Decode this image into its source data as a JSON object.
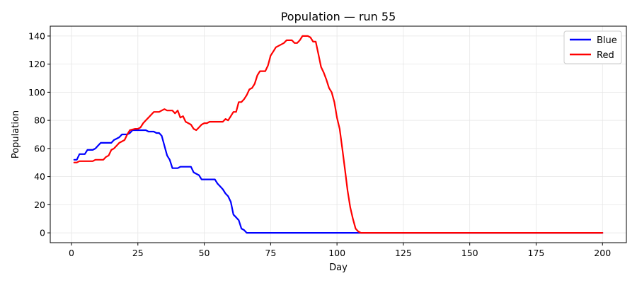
{
  "chart_data": {
    "type": "line",
    "title": "Population — run 55",
    "xlabel": "Day",
    "ylabel": "Population",
    "xlim": [
      -8,
      209
    ],
    "ylim": [
      -7,
      147
    ],
    "xticks": [
      0,
      25,
      50,
      75,
      100,
      125,
      150,
      175,
      200
    ],
    "yticks": [
      0,
      20,
      40,
      60,
      80,
      100,
      120,
      140
    ],
    "grid": true,
    "legend_position": "top-right",
    "series": [
      {
        "name": "Blue",
        "color": "#0000ff",
        "points": [
          [
            1,
            52
          ],
          [
            2,
            52
          ],
          [
            3,
            56
          ],
          [
            5,
            56
          ],
          [
            6,
            59
          ],
          [
            8,
            59
          ],
          [
            9,
            60
          ],
          [
            10,
            62
          ],
          [
            11,
            64
          ],
          [
            15,
            64
          ],
          [
            16,
            66
          ],
          [
            17,
            67
          ],
          [
            18,
            68
          ],
          [
            19,
            70
          ],
          [
            21,
            70
          ],
          [
            22,
            71
          ],
          [
            23,
            73
          ],
          [
            28,
            73
          ],
          [
            29,
            72
          ],
          [
            31,
            72
          ],
          [
            32,
            71
          ],
          [
            33,
            71
          ],
          [
            34,
            69
          ],
          [
            35,
            62
          ],
          [
            36,
            55
          ],
          [
            37,
            52
          ],
          [
            38,
            46
          ],
          [
            40,
            46
          ],
          [
            41,
            47
          ],
          [
            45,
            47
          ],
          [
            46,
            43
          ],
          [
            47,
            42
          ],
          [
            48,
            41
          ],
          [
            49,
            38
          ],
          [
            54,
            38
          ],
          [
            55,
            35
          ],
          [
            56,
            33
          ],
          [
            57,
            31
          ],
          [
            58,
            28
          ],
          [
            59,
            26
          ],
          [
            60,
            22
          ],
          [
            61,
            13
          ],
          [
            62,
            11
          ],
          [
            63,
            9
          ],
          [
            64,
            3
          ],
          [
            65,
            2
          ],
          [
            66,
            0
          ],
          [
            200,
            0
          ]
        ]
      },
      {
        "name": "Red",
        "color": "#ff0000",
        "points": [
          [
            1,
            50
          ],
          [
            2,
            50
          ],
          [
            3,
            51
          ],
          [
            8,
            51
          ],
          [
            9,
            52
          ],
          [
            12,
            52
          ],
          [
            13,
            54
          ],
          [
            14,
            55
          ],
          [
            15,
            59
          ],
          [
            16,
            60
          ],
          [
            17,
            62
          ],
          [
            18,
            64
          ],
          [
            19,
            65
          ],
          [
            20,
            66
          ],
          [
            21,
            70
          ],
          [
            22,
            73
          ],
          [
            24,
            74
          ],
          [
            25,
            74
          ],
          [
            26,
            75
          ],
          [
            27,
            78
          ],
          [
            28,
            80
          ],
          [
            29,
            82
          ],
          [
            30,
            84
          ],
          [
            31,
            86
          ],
          [
            33,
            86
          ],
          [
            34,
            87
          ],
          [
            35,
            88
          ],
          [
            36,
            87
          ],
          [
            38,
            87
          ],
          [
            39,
            85
          ],
          [
            40,
            87
          ],
          [
            41,
            82
          ],
          [
            42,
            83
          ],
          [
            43,
            79
          ],
          [
            44,
            78
          ],
          [
            45,
            77
          ],
          [
            46,
            74
          ],
          [
            47,
            73
          ],
          [
            48,
            75
          ],
          [
            49,
            77
          ],
          [
            50,
            78
          ],
          [
            51,
            78
          ],
          [
            52,
            79
          ],
          [
            56,
            79
          ],
          [
            57,
            79
          ],
          [
            58,
            81
          ],
          [
            59,
            80
          ],
          [
            60,
            83
          ],
          [
            61,
            86
          ],
          [
            62,
            86
          ],
          [
            63,
            93
          ],
          [
            64,
            93
          ],
          [
            65,
            95
          ],
          [
            66,
            98
          ],
          [
            67,
            102
          ],
          [
            68,
            103
          ],
          [
            69,
            106
          ],
          [
            70,
            112
          ],
          [
            71,
            115
          ],
          [
            73,
            115
          ],
          [
            74,
            119
          ],
          [
            75,
            126
          ],
          [
            76,
            129
          ],
          [
            77,
            132
          ],
          [
            78,
            133
          ],
          [
            79,
            134
          ],
          [
            80,
            135
          ],
          [
            81,
            137
          ],
          [
            83,
            137
          ],
          [
            84,
            135
          ],
          [
            85,
            135
          ],
          [
            86,
            137
          ],
          [
            87,
            140
          ],
          [
            89,
            140
          ],
          [
            90,
            139
          ],
          [
            91,
            136
          ],
          [
            92,
            136
          ],
          [
            93,
            127
          ],
          [
            94,
            118
          ],
          [
            95,
            114
          ],
          [
            96,
            109
          ],
          [
            97,
            103
          ],
          [
            98,
            100
          ],
          [
            99,
            93
          ],
          [
            100,
            82
          ],
          [
            101,
            74
          ],
          [
            102,
            60
          ],
          [
            103,
            45
          ],
          [
            104,
            30
          ],
          [
            105,
            18
          ],
          [
            106,
            10
          ],
          [
            107,
            3
          ],
          [
            108,
            1
          ],
          [
            109,
            0
          ],
          [
            200,
            0
          ]
        ]
      }
    ]
  }
}
